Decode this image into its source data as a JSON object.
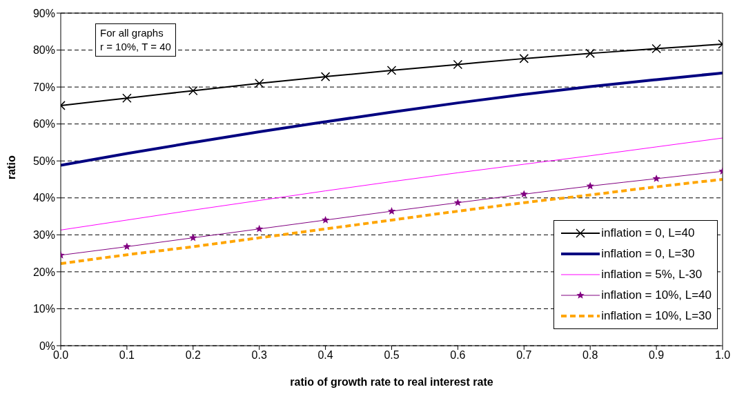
{
  "chart_data": {
    "type": "line",
    "xlabel": "ratio of growth rate to real interest rate",
    "ylabel": "ratio",
    "x": [
      0,
      0.1,
      0.2,
      0.3,
      0.4,
      0.5,
      0.6,
      0.7,
      0.8,
      0.9,
      1.0
    ],
    "series": [
      {
        "name": "inflation = 0, L=40",
        "color": "#000000",
        "marker": "cross",
        "line_style": "solid",
        "values": [
          65,
          67,
          69,
          71,
          72.8,
          74.5,
          76.1,
          77.7,
          79.1,
          80.4,
          81.6
        ]
      },
      {
        "name": "inflation = 0, L=30",
        "color": "#000080",
        "marker": "none",
        "line_style": "solid",
        "values": [
          48.8,
          52,
          55,
          57.9,
          60.6,
          63.2,
          65.7,
          68,
          70.1,
          72,
          73.8
        ]
      },
      {
        "name": "inflation = 5%, L-30",
        "color": "#ff00ff",
        "marker": "none",
        "line_style": "solid",
        "values": [
          31.3,
          34,
          36.7,
          39.3,
          41.9,
          44.4,
          46.8,
          49.1,
          51.4,
          53.8,
          56.2
        ]
      },
      {
        "name": "inflation = 10%, L=40",
        "color": "#800080",
        "marker": "star",
        "line_style": "solid",
        "values": [
          24.5,
          26.8,
          29.2,
          31.6,
          34,
          36.4,
          38.7,
          41,
          43.2,
          45.2,
          47.2
        ]
      },
      {
        "name": "inflation = 10%, L=30",
        "color": "#ffa500",
        "marker": "none",
        "line_style": "dashed",
        "values": [
          22.2,
          24.6,
          26.8,
          29.2,
          31.6,
          34,
          36.4,
          38.7,
          40.8,
          43,
          45
        ]
      }
    ],
    "xlim": [
      0,
      1
    ],
    "xticks": [
      {
        "value": 0,
        "label": "0.0"
      },
      {
        "value": 0.1,
        "label": "0.1"
      },
      {
        "value": 0.2,
        "label": "0.2"
      },
      {
        "value": 0.3,
        "label": "0.3"
      },
      {
        "value": 0.4,
        "label": "0.4"
      },
      {
        "value": 0.5,
        "label": "0.5"
      },
      {
        "value": 0.6,
        "label": "0.6"
      },
      {
        "value": 0.7,
        "label": "0.7"
      },
      {
        "value": 0.8,
        "label": "0.8"
      },
      {
        "value": 0.9,
        "label": "0.9"
      },
      {
        "value": 1,
        "label": "1.0"
      }
    ],
    "ylim": [
      0,
      90
    ],
    "yticks": [
      {
        "value": 0,
        "label": "0%"
      },
      {
        "value": 10,
        "label": "10%"
      },
      {
        "value": 20,
        "label": "20%"
      },
      {
        "value": 30,
        "label": "30%"
      },
      {
        "value": 40,
        "label": "40%"
      },
      {
        "value": 50,
        "label": "50%"
      },
      {
        "value": 60,
        "label": "60%"
      },
      {
        "value": 70,
        "label": "70%"
      },
      {
        "value": 80,
        "label": "80%"
      },
      {
        "value": 90,
        "label": "90%"
      }
    ],
    "grid": "y",
    "legend": "bottom right",
    "annotations": [
      "For all graphs",
      "r = 10%, T = 40"
    ]
  }
}
